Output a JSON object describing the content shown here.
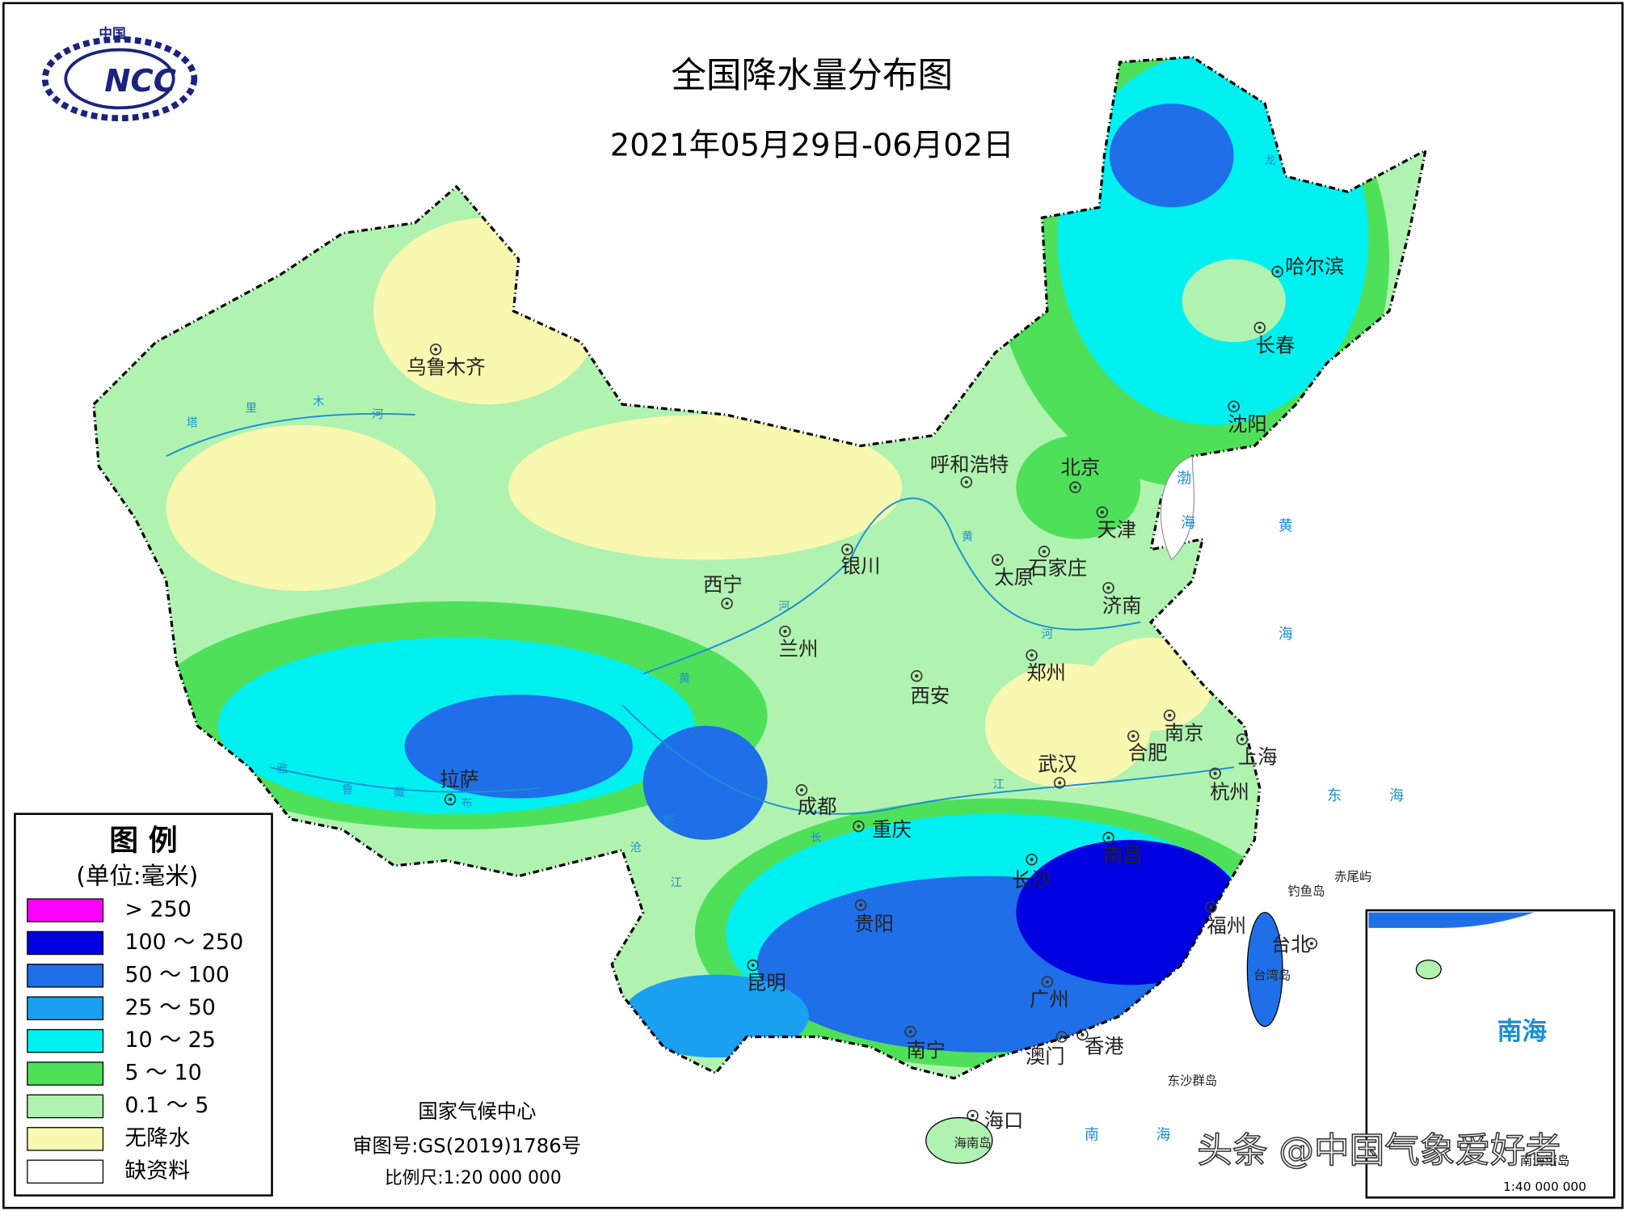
{
  "header": {
    "title": "全国降水量分布图",
    "date": "2021年05月29日-06月02日"
  },
  "logo": {
    "top": "中国",
    "text": "NCC"
  },
  "legend": {
    "title": "图 例",
    "unit": "(单位:毫米)",
    "items": [
      {
        "label": "> 250",
        "color": "#ff00ff"
      },
      {
        "label": "100 ～ 250",
        "color": "#0000e0"
      },
      {
        "label": "50 ～ 100",
        "color": "#1f6fe8"
      },
      {
        "label": "25 ～ 50",
        "color": "#1aa0f0"
      },
      {
        "label": "10 ～ 25",
        "color": "#00f0f0"
      },
      {
        "label": "5 ～ 10",
        "color": "#4fe05a"
      },
      {
        "label": "0.1 ～ 5",
        "color": "#b0f2b0"
      },
      {
        "label": "无降水",
        "color": "#f8f8b0"
      },
      {
        "label": "缺资料",
        "color": "#ffffff"
      }
    ]
  },
  "cities": [
    "乌鲁木齐",
    "哈尔滨",
    "长春",
    "沈阳",
    "呼和浩特",
    "北京",
    "天津",
    "石家庄",
    "太原",
    "济南",
    "银川",
    "西宁",
    "兰州",
    "西安",
    "郑州",
    "南京",
    "合肥",
    "上海",
    "武汉",
    "杭州",
    "拉萨",
    "成都",
    "重庆",
    "长沙",
    "南昌",
    "贵阳",
    "福州",
    "台北",
    "昆明",
    "广州",
    "南宁",
    "香港",
    "澳门",
    "海口"
  ],
  "places": [
    "台湾岛",
    "钓鱼岛",
    "赤尾屿",
    "东沙群岛",
    "海南岛"
  ],
  "sea_labels": [
    "渤",
    "海",
    "黄",
    "海",
    "东",
    "海",
    "南",
    "海"
  ],
  "river_labels": [
    "塔",
    "里",
    "木",
    "河",
    "黄",
    "河",
    "黄",
    "河",
    "长",
    "江",
    "江",
    "雅",
    "鲁",
    "藏",
    "布",
    "沧",
    "怒",
    "龙"
  ],
  "footer": {
    "org": "国家气候中心",
    "approval": "审图号:GS(2019)1786号",
    "scale": "比例尺:1:20 000 000"
  },
  "inset": {
    "label": "南海",
    "caption": "南海诸岛",
    "scale": "1:40 000 000"
  },
  "watermark": "头条 @中国气象爱好者"
}
